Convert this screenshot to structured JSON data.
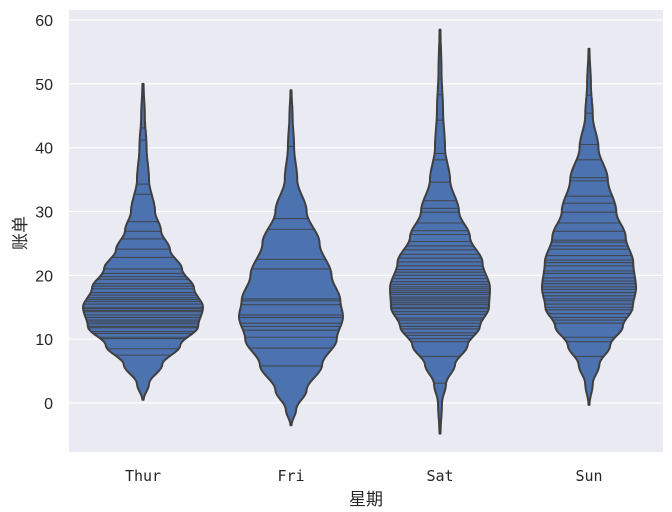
{
  "chart_data": {
    "type": "violin",
    "title": "",
    "xlabel": "星期",
    "ylabel": "账单",
    "categories": [
      "Thur",
      "Fri",
      "Sat",
      "Sun"
    ],
    "yticks": [
      0,
      10,
      20,
      30,
      40,
      50,
      60
    ],
    "ylim": [
      -7.8,
      61.6
    ],
    "grid": true,
    "inner": "stick",
    "colors": {
      "background": "#eaeaf2",
      "grid": "#ffffff",
      "fill": "#4c72b0",
      "edge": "#3f3f3f"
    },
    "series": [
      {
        "name": "Thur",
        "min_extent": 0.5,
        "max_extent": 50.0,
        "mode": 14.5,
        "profile": [
          [
            50,
            0.01
          ],
          [
            45,
            0.03
          ],
          [
            40,
            0.06
          ],
          [
            35,
            0.1
          ],
          [
            30,
            0.2
          ],
          [
            27,
            0.3
          ],
          [
            24,
            0.45
          ],
          [
            21,
            0.65
          ],
          [
            18,
            0.85
          ],
          [
            15,
            1.0
          ],
          [
            12,
            0.92
          ],
          [
            9,
            0.62
          ],
          [
            6,
            0.32
          ],
          [
            3,
            0.1
          ],
          [
            0.5,
            0.01
          ]
        ],
        "sticks": [
          7.5,
          8.5,
          10.1,
          10.3,
          10.9,
          11.2,
          11.8,
          12.0,
          12.4,
          12.7,
          13.0,
          13.4,
          13.8,
          14.3,
          14.5,
          14.8,
          15.0,
          15.5,
          15.9,
          16.2,
          16.5,
          16.9,
          17.3,
          17.9,
          18.3,
          18.7,
          19.4,
          19.8,
          20.3,
          21.0,
          22.8,
          24.1,
          25.7,
          26.9,
          28.4,
          32.7,
          34.3,
          41.2,
          43.1
        ]
      },
      {
        "name": "Fri",
        "min_extent": -3.5,
        "max_extent": 49.0,
        "mode": 13.5,
        "profile": [
          [
            49,
            0.01
          ],
          [
            45,
            0.03
          ],
          [
            40,
            0.06
          ],
          [
            35,
            0.12
          ],
          [
            30,
            0.3
          ],
          [
            25,
            0.55
          ],
          [
            20,
            0.78
          ],
          [
            16,
            0.95
          ],
          [
            13.5,
            1.0
          ],
          [
            10,
            0.88
          ],
          [
            6,
            0.6
          ],
          [
            2,
            0.3
          ],
          [
            -1,
            0.1
          ],
          [
            -3.5,
            0.01
          ]
        ],
        "sticks": [
          5.8,
          8.6,
          10.3,
          11.4,
          12.0,
          12.5,
          13.4,
          13.8,
          15.4,
          16.0,
          16.3,
          21.0,
          22.5,
          27.2,
          28.9,
          40.2
        ]
      },
      {
        "name": "Sat",
        "min_extent": -4.8,
        "max_extent": 58.5,
        "mode": 17.0,
        "profile": [
          [
            58.5,
            0.01
          ],
          [
            52,
            0.03
          ],
          [
            46,
            0.06
          ],
          [
            40,
            0.1
          ],
          [
            35,
            0.2
          ],
          [
            30,
            0.38
          ],
          [
            26,
            0.6
          ],
          [
            22,
            0.85
          ],
          [
            18,
            1.0
          ],
          [
            15,
            0.98
          ],
          [
            12,
            0.8
          ],
          [
            9,
            0.55
          ],
          [
            6,
            0.3
          ],
          [
            3,
            0.12
          ],
          [
            0,
            0.04
          ],
          [
            -4.8,
            0.01
          ]
        ],
        "sticks": [
          3.1,
          7.3,
          9.6,
          10.1,
          10.6,
          11.0,
          11.6,
          12.0,
          12.5,
          13.0,
          13.3,
          13.9,
          14.3,
          14.8,
          15.0,
          15.4,
          15.7,
          16.0,
          16.3,
          16.6,
          17.0,
          17.3,
          17.6,
          17.9,
          18.2,
          18.6,
          19.0,
          19.5,
          20.0,
          20.5,
          20.9,
          21.5,
          22.1,
          22.7,
          23.3,
          24.0,
          24.6,
          25.3,
          26.4,
          27.0,
          28.2,
          29.9,
          30.5,
          31.7,
          34.6,
          38.1,
          39.1,
          44.3,
          48.3,
          50.8
        ]
      },
      {
        "name": "Sun",
        "min_extent": -0.3,
        "max_extent": 55.5,
        "mode": 18.0,
        "profile": [
          [
            55.5,
            0.01
          ],
          [
            50,
            0.04
          ],
          [
            45,
            0.08
          ],
          [
            40,
            0.2
          ],
          [
            35,
            0.4
          ],
          [
            30,
            0.58
          ],
          [
            26,
            0.78
          ],
          [
            22,
            0.94
          ],
          [
            18,
            1.0
          ],
          [
            15,
            0.93
          ],
          [
            12,
            0.72
          ],
          [
            9,
            0.45
          ],
          [
            6,
            0.22
          ],
          [
            3,
            0.08
          ],
          [
            -0.3,
            0.01
          ]
        ],
        "sticks": [
          7.3,
          9.6,
          10.3,
          12.5,
          13.0,
          13.4,
          14.0,
          14.6,
          15.0,
          15.5,
          16.0,
          16.3,
          16.8,
          17.3,
          17.8,
          18.2,
          18.7,
          19.1,
          19.6,
          20.3,
          20.7,
          21.5,
          22.0,
          22.4,
          23.1,
          24.1,
          24.6,
          25.2,
          25.5,
          26.9,
          28.2,
          29.9,
          31.3,
          32.4,
          34.8,
          35.3,
          38.1,
          40.5,
          45.4,
          48.2
        ]
      }
    ]
  }
}
